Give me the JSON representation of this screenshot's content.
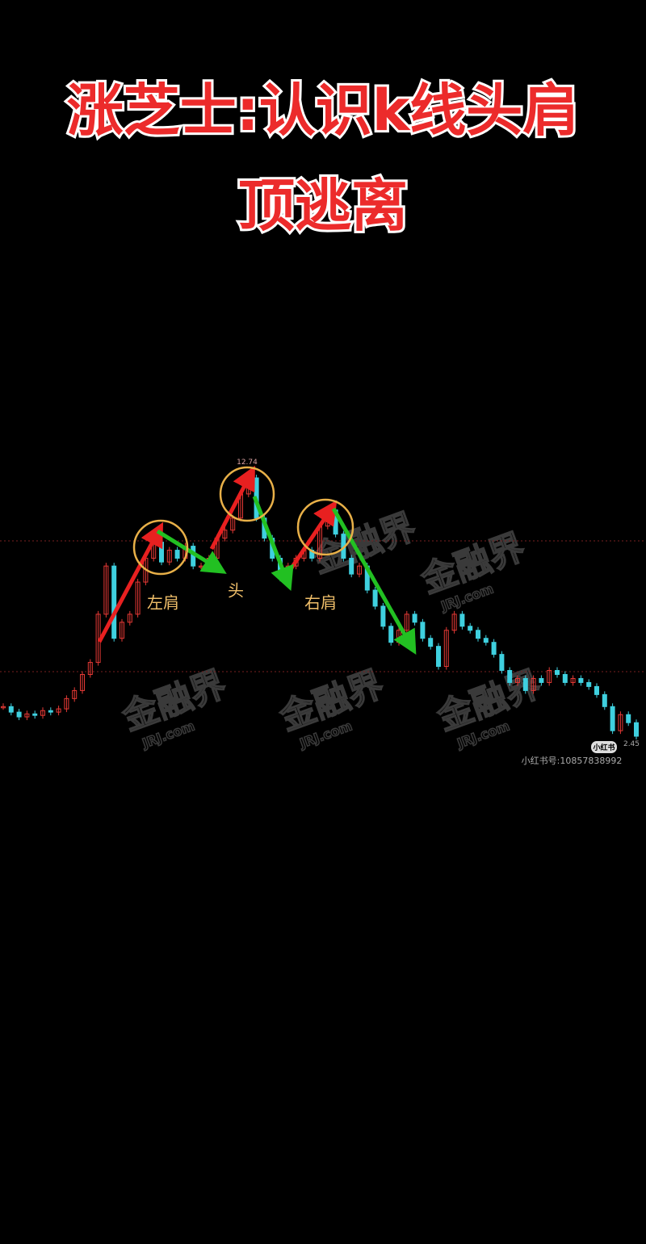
{
  "title_lines": [
    "涨芝士:认识k线头肩",
    "顶逃离"
  ],
  "chart_data": {
    "type": "candlestick",
    "values": [
      3.63,
      3.41,
      3.22,
      3.34,
      3.28,
      3.47,
      3.41,
      3.54,
      3.95,
      4.27,
      4.91,
      5.39,
      7.31,
      9.23,
      6.35,
      6.99,
      7.31,
      8.59,
      9.54,
      10.18,
      9.39,
      9.86,
      9.54,
      10.02,
      9.23,
      9.23,
      9.54,
      10.34,
      10.66,
      11.14,
      12.1,
      12.74,
      11.14,
      10.34,
      9.54,
      8.75,
      9.23,
      9.54,
      9.86,
      9.54,
      10.82,
      11.46,
      10.5,
      9.54,
      8.91,
      9.23,
      8.27,
      7.63,
      6.83,
      6.19,
      6.67,
      7.31,
      6.99,
      6.35,
      6.03,
      5.23,
      6.67,
      7.31,
      6.83,
      6.67,
      6.35,
      6.19,
      5.71,
      5.07,
      4.59,
      4.75,
      4.27,
      4.75,
      4.59,
      5.07,
      4.91,
      4.59,
      4.75,
      4.59,
      4.43,
      4.11,
      3.63,
      2.67,
      3.31,
      2.99,
      2.45
    ],
    "ylim": [
      2.45,
      12.74
    ],
    "up_color": "#e53935",
    "down_color": "#3fd0df",
    "annotations": [
      "左肩",
      "头",
      "右肩"
    ]
  },
  "watermarks": [
    "金融界",
    "JRJ.com"
  ],
  "footer": {
    "badge": "小红书",
    "account": "小红书号:10857838992"
  }
}
